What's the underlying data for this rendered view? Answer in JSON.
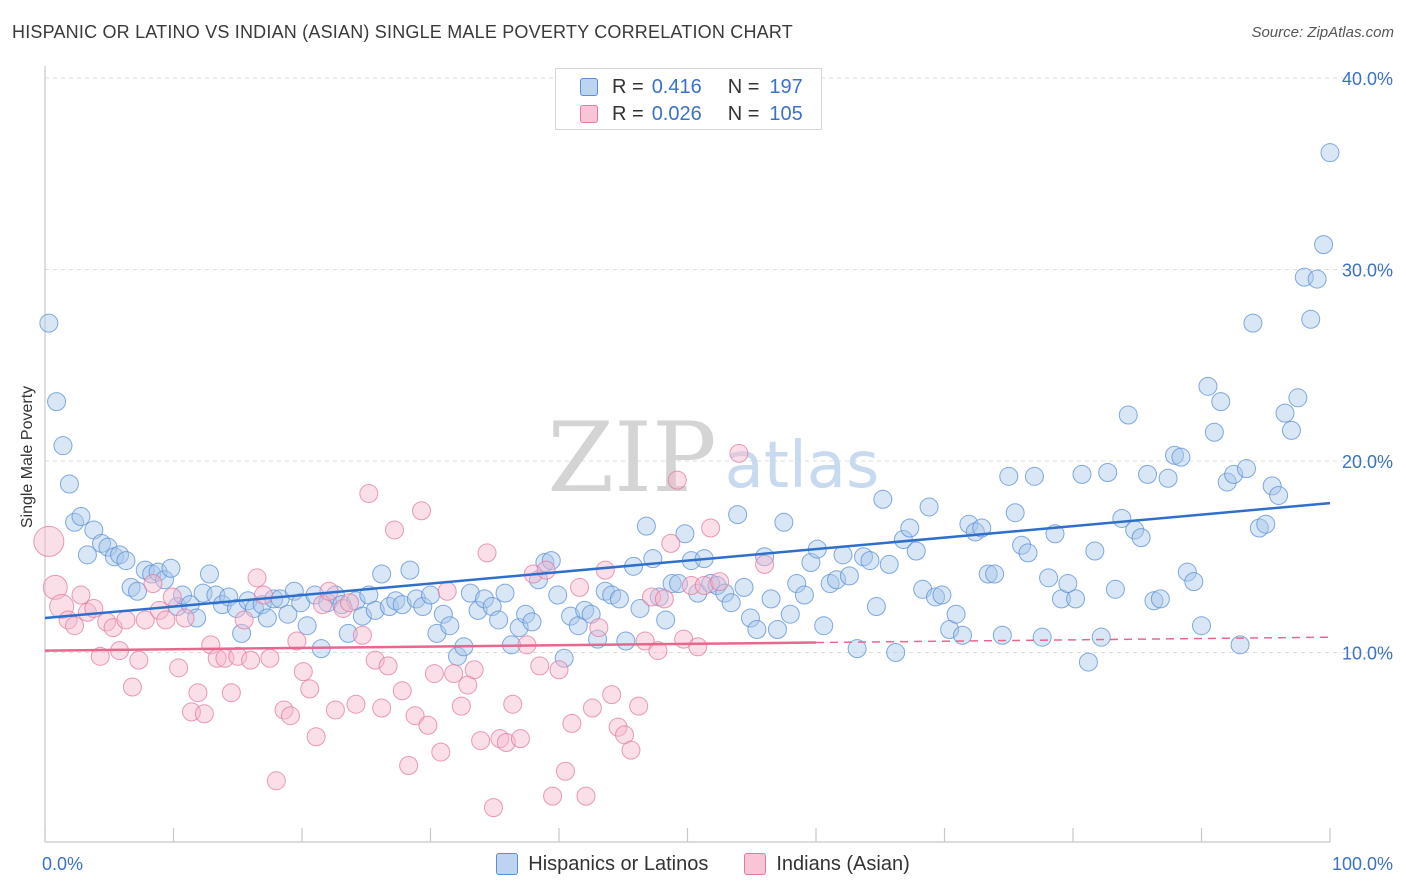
{
  "title": "HISPANIC OR LATINO VS INDIAN (ASIAN) SINGLE MALE POVERTY CORRELATION CHART",
  "source": "Source: ZipAtlas.com",
  "watermark": {
    "zip": "ZIP",
    "atlas": "atlas"
  },
  "legend_top": [
    {
      "r_label": "R =",
      "r_value": "0.416",
      "n_label": "N =",
      "n_value": "197"
    },
    {
      "r_label": "R =",
      "r_value": "0.026",
      "n_label": "N =",
      "n_value": "105"
    }
  ],
  "colors": {
    "blue_fill": "#a9c8ec",
    "blue_stroke": "#5b8fd6",
    "blue_line": "#2f6fcc",
    "pink_fill": "#f6b7cb",
    "pink_stroke": "#e27aa0",
    "pink_line": "#e8678f",
    "axis_text": "#3a72c8",
    "grid": "#dddddd"
  },
  "chart_data": {
    "type": "scatter",
    "title": "HISPANIC OR LATINO VS INDIAN (ASIAN) SINGLE MALE POVERTY CORRELATION CHART",
    "xlabel": "",
    "ylabel": "Single Male Poverty",
    "xlim": [
      0,
      100
    ],
    "ylim": [
      0,
      40
    ],
    "x_tick_labels": [
      "0.0%",
      "100.0%"
    ],
    "y_ticks": [
      10,
      20,
      30,
      40
    ],
    "y_tick_labels": [
      "10.0%",
      "20.0%",
      "30.0%",
      "40.0%"
    ],
    "grid": true,
    "legend_position": "bottom",
    "series": [
      {
        "name": "Hispanics or Latinos",
        "color": "#a9c8ec",
        "trend": {
          "x": [
            0,
            100
          ],
          "y": [
            11.8,
            17.8
          ],
          "dashed_from": null
        },
        "points": [
          [
            0.3,
            27.2
          ],
          [
            0.9,
            23.1
          ],
          [
            1.4,
            20.8
          ],
          [
            1.9,
            18.8
          ],
          [
            2.3,
            16.8
          ],
          [
            2.8,
            17.1
          ],
          [
            3.3,
            15.1
          ],
          [
            3.8,
            16.4
          ],
          [
            4.4,
            15.7
          ],
          [
            4.9,
            15.5
          ],
          [
            5.4,
            15.0
          ],
          [
            5.8,
            15.1
          ],
          [
            6.3,
            14.8
          ],
          [
            6.7,
            13.4
          ],
          [
            7.2,
            13.2
          ],
          [
            7.8,
            14.3
          ],
          [
            8.3,
            14.1
          ],
          [
            8.8,
            14.2
          ],
          [
            9.3,
            13.8
          ],
          [
            9.8,
            14.4
          ],
          [
            10.3,
            12.4
          ],
          [
            10.7,
            13.0
          ],
          [
            11.3,
            12.5
          ],
          [
            11.8,
            11.8
          ],
          [
            12.3,
            13.1
          ],
          [
            12.8,
            14.1
          ],
          [
            13.3,
            13.0
          ],
          [
            13.8,
            12.5
          ],
          [
            14.3,
            12.9
          ],
          [
            14.9,
            12.3
          ],
          [
            15.3,
            11.0
          ],
          [
            15.8,
            12.7
          ],
          [
            16.3,
            12.3
          ],
          [
            16.9,
            12.5
          ],
          [
            17.3,
            11.8
          ],
          [
            17.8,
            12.8
          ],
          [
            18.3,
            12.8
          ],
          [
            18.9,
            12.0
          ],
          [
            19.4,
            13.2
          ],
          [
            19.9,
            12.6
          ],
          [
            20.4,
            11.4
          ],
          [
            21.0,
            13.0
          ],
          [
            21.5,
            10.2
          ],
          [
            22.0,
            12.6
          ],
          [
            22.6,
            13.0
          ],
          [
            23.1,
            12.5
          ],
          [
            23.6,
            11.0
          ],
          [
            24.2,
            12.7
          ],
          [
            24.7,
            11.9
          ],
          [
            25.2,
            13.0
          ],
          [
            25.7,
            12.2
          ],
          [
            26.2,
            14.1
          ],
          [
            26.8,
            12.4
          ],
          [
            27.3,
            12.7
          ],
          [
            27.8,
            12.5
          ],
          [
            28.4,
            14.3
          ],
          [
            28.9,
            12.8
          ],
          [
            29.4,
            12.4
          ],
          [
            30.0,
            13.0
          ],
          [
            30.5,
            11.0
          ],
          [
            31.0,
            12.0
          ],
          [
            31.5,
            11.4
          ],
          [
            32.1,
            9.8
          ],
          [
            32.6,
            10.3
          ],
          [
            33.1,
            13.1
          ],
          [
            33.7,
            12.2
          ],
          [
            34.2,
            12.8
          ],
          [
            34.8,
            12.4
          ],
          [
            35.3,
            11.7
          ],
          [
            35.8,
            13.1
          ],
          [
            36.3,
            10.4
          ],
          [
            36.9,
            11.3
          ],
          [
            37.4,
            12.0
          ],
          [
            37.9,
            11.6
          ],
          [
            38.4,
            13.8
          ],
          [
            38.9,
            14.7
          ],
          [
            39.4,
            14.8
          ],
          [
            39.9,
            13.0
          ],
          [
            40.4,
            9.7
          ],
          [
            40.9,
            11.9
          ],
          [
            41.5,
            11.4
          ],
          [
            42.0,
            12.2
          ],
          [
            42.5,
            12.0
          ],
          [
            43.0,
            10.7
          ],
          [
            43.6,
            13.2
          ],
          [
            44.1,
            13.0
          ],
          [
            44.7,
            12.8
          ],
          [
            45.2,
            10.6
          ],
          [
            45.8,
            14.5
          ],
          [
            46.3,
            12.3
          ],
          [
            46.8,
            16.6
          ],
          [
            47.3,
            14.9
          ],
          [
            47.8,
            12.9
          ],
          [
            48.3,
            11.7
          ],
          [
            48.8,
            13.6
          ],
          [
            49.3,
            13.6
          ],
          [
            49.8,
            16.2
          ],
          [
            50.3,
            14.8
          ],
          [
            50.8,
            13.1
          ],
          [
            51.3,
            14.9
          ],
          [
            51.8,
            13.6
          ],
          [
            52.3,
            13.5
          ],
          [
            52.9,
            13.1
          ],
          [
            53.4,
            12.6
          ],
          [
            53.9,
            17.2
          ],
          [
            54.4,
            13.4
          ],
          [
            54.9,
            11.8
          ],
          [
            55.4,
            11.2
          ],
          [
            56.0,
            15.0
          ],
          [
            56.5,
            12.8
          ],
          [
            57.0,
            11.2
          ],
          [
            57.5,
            16.8
          ],
          [
            58.0,
            12.0
          ],
          [
            58.5,
            13.6
          ],
          [
            59.1,
            13.0
          ],
          [
            59.6,
            14.7
          ],
          [
            60.1,
            15.4
          ],
          [
            60.6,
            11.4
          ],
          [
            61.1,
            13.6
          ],
          [
            61.6,
            13.8
          ],
          [
            62.1,
            15.1
          ],
          [
            62.6,
            14.0
          ],
          [
            63.2,
            10.2
          ],
          [
            63.7,
            15.0
          ],
          [
            64.2,
            14.8
          ],
          [
            64.7,
            12.4
          ],
          [
            65.2,
            18.0
          ],
          [
            65.7,
            14.6
          ],
          [
            66.2,
            10.0
          ],
          [
            66.8,
            15.9
          ],
          [
            67.3,
            16.5
          ],
          [
            67.8,
            15.3
          ],
          [
            68.3,
            13.3
          ],
          [
            68.8,
            17.6
          ],
          [
            69.3,
            12.9
          ],
          [
            69.8,
            13.0
          ],
          [
            70.4,
            11.2
          ],
          [
            70.9,
            12.0
          ],
          [
            71.4,
            10.9
          ],
          [
            71.9,
            16.7
          ],
          [
            72.4,
            16.3
          ],
          [
            72.9,
            16.5
          ],
          [
            73.4,
            14.1
          ],
          [
            73.9,
            14.1
          ],
          [
            74.5,
            10.9
          ],
          [
            75.0,
            19.2
          ],
          [
            75.5,
            17.3
          ],
          [
            76.0,
            15.6
          ],
          [
            76.5,
            15.2
          ],
          [
            77.0,
            19.2
          ],
          [
            77.6,
            10.8
          ],
          [
            78.1,
            13.9
          ],
          [
            78.6,
            16.2
          ],
          [
            79.1,
            12.8
          ],
          [
            79.6,
            13.6
          ],
          [
            80.2,
            12.8
          ],
          [
            80.7,
            19.3
          ],
          [
            81.2,
            9.5
          ],
          [
            81.7,
            15.3
          ],
          [
            82.2,
            10.8
          ],
          [
            82.7,
            19.4
          ],
          [
            83.3,
            13.3
          ],
          [
            83.8,
            17.0
          ],
          [
            84.3,
            22.4
          ],
          [
            84.8,
            16.4
          ],
          [
            85.3,
            16.0
          ],
          [
            85.8,
            19.3
          ],
          [
            86.3,
            12.7
          ],
          [
            86.8,
            12.8
          ],
          [
            87.4,
            19.1
          ],
          [
            87.9,
            20.3
          ],
          [
            88.4,
            20.2
          ],
          [
            88.9,
            14.2
          ],
          [
            89.4,
            13.7
          ],
          [
            90.0,
            11.4
          ],
          [
            90.5,
            23.9
          ],
          [
            91.0,
            21.5
          ],
          [
            91.5,
            23.1
          ],
          [
            92.0,
            18.9
          ],
          [
            92.5,
            19.3
          ],
          [
            93.0,
            10.4
          ],
          [
            93.5,
            19.6
          ],
          [
            94.0,
            27.2
          ],
          [
            94.5,
            16.5
          ],
          [
            95.0,
            16.7
          ],
          [
            95.5,
            18.7
          ],
          [
            96.0,
            18.2
          ],
          [
            96.5,
            22.5
          ],
          [
            97.0,
            21.6
          ],
          [
            97.5,
            23.3
          ],
          [
            98.0,
            29.6
          ],
          [
            98.5,
            27.4
          ],
          [
            99.0,
            29.5
          ],
          [
            99.5,
            31.3
          ],
          [
            100.0,
            36.1
          ]
        ]
      },
      {
        "name": "Indians (Asian)",
        "color": "#f6b7cb",
        "trend": {
          "x": [
            0,
            100
          ],
          "y": [
            10.1,
            10.8
          ],
          "dashed_from": 60
        },
        "points": [
          [
            0.3,
            15.8
          ],
          [
            0.8,
            13.4
          ],
          [
            1.3,
            12.4
          ],
          [
            1.8,
            11.7
          ],
          [
            2.3,
            11.4
          ],
          [
            2.8,
            13.0
          ],
          [
            3.3,
            12.1
          ],
          [
            3.8,
            12.3
          ],
          [
            4.3,
            9.8
          ],
          [
            4.8,
            11.6
          ],
          [
            5.3,
            11.3
          ],
          [
            5.8,
            10.1
          ],
          [
            6.3,
            11.7
          ],
          [
            6.8,
            8.2
          ],
          [
            7.3,
            9.6
          ],
          [
            7.8,
            11.7
          ],
          [
            8.4,
            13.6
          ],
          [
            8.9,
            12.2
          ],
          [
            9.4,
            11.7
          ],
          [
            9.9,
            12.9
          ],
          [
            10.4,
            9.2
          ],
          [
            10.9,
            11.8
          ],
          [
            11.4,
            6.9
          ],
          [
            11.9,
            7.9
          ],
          [
            12.4,
            6.8
          ],
          [
            12.9,
            10.4
          ],
          [
            13.4,
            9.7
          ],
          [
            14.0,
            9.7
          ],
          [
            14.5,
            7.9
          ],
          [
            15.0,
            9.8
          ],
          [
            15.5,
            11.7
          ],
          [
            16.0,
            9.6
          ],
          [
            16.5,
            13.9
          ],
          [
            17.0,
            13.0
          ],
          [
            17.5,
            9.7
          ],
          [
            18.0,
            3.3
          ],
          [
            18.6,
            7.0
          ],
          [
            19.1,
            6.7
          ],
          [
            19.6,
            10.6
          ],
          [
            20.1,
            9.0
          ],
          [
            20.6,
            8.1
          ],
          [
            21.1,
            5.6
          ],
          [
            21.6,
            12.5
          ],
          [
            22.1,
            13.2
          ],
          [
            22.6,
            7.0
          ],
          [
            23.2,
            12.3
          ],
          [
            23.7,
            12.6
          ],
          [
            24.2,
            7.3
          ],
          [
            24.7,
            10.9
          ],
          [
            25.2,
            18.3
          ],
          [
            25.7,
            9.6
          ],
          [
            26.2,
            7.1
          ],
          [
            26.7,
            9.3
          ],
          [
            27.2,
            16.4
          ],
          [
            27.8,
            8.0
          ],
          [
            28.3,
            4.1
          ],
          [
            28.8,
            6.7
          ],
          [
            29.3,
            17.4
          ],
          [
            29.8,
            6.2
          ],
          [
            30.3,
            8.9
          ],
          [
            30.8,
            4.8
          ],
          [
            31.3,
            13.2
          ],
          [
            31.8,
            8.9
          ],
          [
            32.4,
            7.2
          ],
          [
            32.9,
            8.3
          ],
          [
            33.4,
            9.1
          ],
          [
            33.9,
            5.4
          ],
          [
            34.4,
            15.2
          ],
          [
            34.9,
            1.9
          ],
          [
            35.4,
            5.5
          ],
          [
            35.9,
            5.3
          ],
          [
            36.4,
            7.3
          ],
          [
            37.0,
            5.5
          ],
          [
            37.5,
            10.4
          ],
          [
            38.0,
            14.1
          ],
          [
            38.5,
            9.3
          ],
          [
            39.0,
            14.3
          ],
          [
            39.5,
            2.5
          ],
          [
            40.0,
            9.1
          ],
          [
            40.5,
            3.8
          ],
          [
            41.0,
            6.3
          ],
          [
            41.6,
            13.4
          ],
          [
            42.1,
            2.5
          ],
          [
            42.6,
            7.1
          ],
          [
            43.1,
            11.3
          ],
          [
            43.6,
            14.3
          ],
          [
            44.1,
            7.8
          ],
          [
            44.6,
            6.1
          ],
          [
            45.1,
            5.7
          ],
          [
            45.6,
            4.9
          ],
          [
            46.2,
            7.2
          ],
          [
            46.7,
            10.6
          ],
          [
            47.2,
            12.9
          ],
          [
            47.7,
            10.1
          ],
          [
            48.2,
            12.8
          ],
          [
            48.7,
            15.7
          ],
          [
            49.2,
            19.0
          ],
          [
            49.7,
            10.7
          ],
          [
            50.3,
            13.5
          ],
          [
            50.8,
            10.3
          ],
          [
            51.3,
            13.5
          ],
          [
            51.8,
            16.5
          ],
          [
            52.5,
            13.7
          ],
          [
            54.0,
            20.4
          ],
          [
            56.0,
            14.6
          ]
        ]
      }
    ]
  },
  "legend_bottom": [
    "Hispanics or Latinos",
    "Indians (Asian)"
  ]
}
